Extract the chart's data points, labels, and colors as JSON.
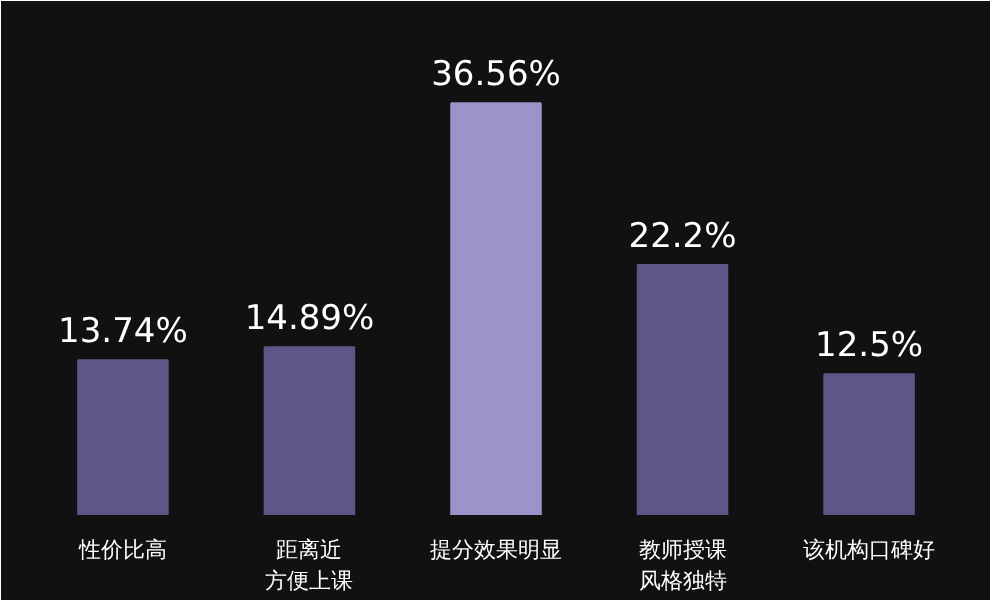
{
  "chart_data": {
    "type": "bar",
    "categories": [
      "性价比高",
      "距离近方便上课",
      "提分效果明显",
      "教师授课风格独特",
      "该机构口碑好"
    ],
    "values": [
      13.74,
      14.89,
      36.56,
      22.2,
      12.5
    ],
    "colors": [
      "#5d5788",
      "#5d5788",
      "#9b93c9",
      "#5d5788",
      "#5d5788"
    ],
    "value_labels": [
      "13.74%",
      "14.89%",
      "36.56%",
      "22.2%",
      "12.5%"
    ]
  }
}
